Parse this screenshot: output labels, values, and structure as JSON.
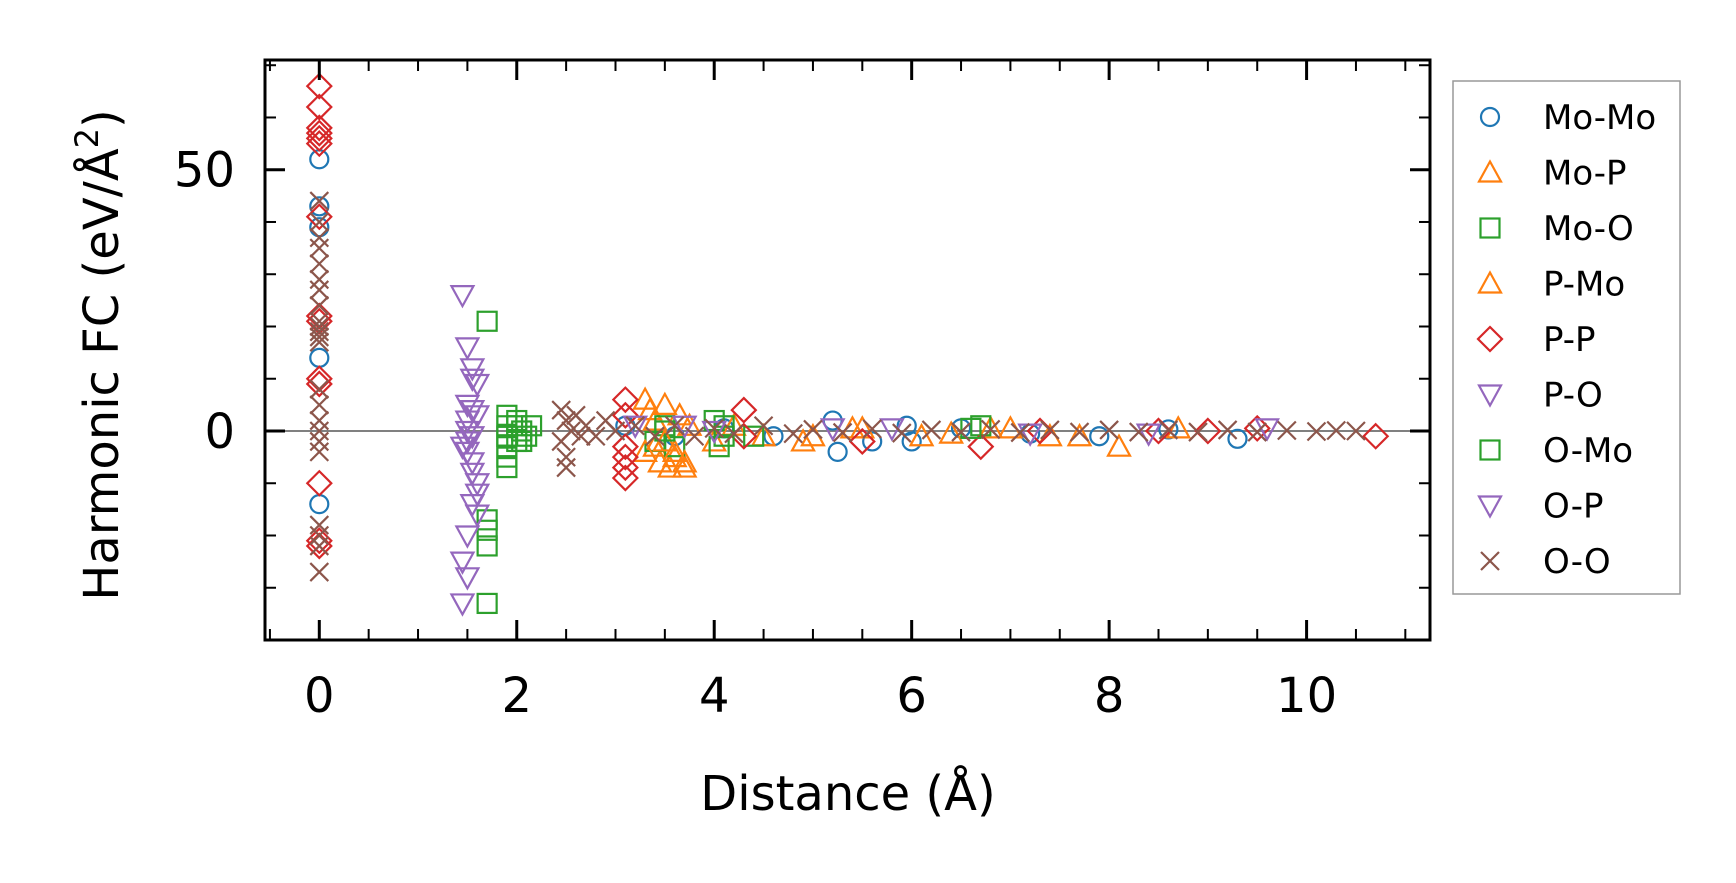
{
  "chart_data": {
    "type": "scatter",
    "title": "",
    "xlabel": "Distance (Å)",
    "ylabel_main": "Harmonic FC (eV/Å",
    "ylabel_sup": "2",
    "ylabel_end": ")",
    "xlim": [
      -0.55,
      11.25
    ],
    "ylim": [
      -40,
      71
    ],
    "x_ticks": [
      0,
      2,
      4,
      6,
      8,
      10
    ],
    "x_tick_labels": [
      "0",
      "2",
      "4",
      "6",
      "8",
      "10"
    ],
    "y_ticks": [
      0,
      50
    ],
    "y_tick_labels": [
      "0",
      "50"
    ],
    "x_minor_step": 0.5,
    "y_minor_step": 10,
    "zero_line": true,
    "grid": false,
    "legend_position": "outside-right",
    "series": [
      {
        "name": "Mo-Mo",
        "marker": "circle",
        "color": "#1f77b4",
        "points": [
          [
            0,
            52
          ],
          [
            0,
            43
          ],
          [
            0,
            39
          ],
          [
            0,
            14
          ],
          [
            0,
            -14
          ],
          [
            3.1,
            1
          ],
          [
            3.6,
            -1
          ],
          [
            4.1,
            0.5
          ],
          [
            4.6,
            -1
          ],
          [
            5.2,
            2
          ],
          [
            5.25,
            -4
          ],
          [
            5.6,
            -2
          ],
          [
            5.95,
            1
          ],
          [
            6.0,
            -2
          ],
          [
            6.5,
            0.5
          ],
          [
            7.2,
            -0.5
          ],
          [
            7.9,
            -1
          ],
          [
            8.6,
            0.3
          ],
          [
            9.3,
            -1.5
          ]
        ]
      },
      {
        "name": "Mo-P",
        "marker": "triangle-up",
        "color": "#ff7f0e",
        "points": [
          [
            3.3,
            6
          ],
          [
            3.35,
            4
          ],
          [
            3.4,
            2
          ],
          [
            3.4,
            -3
          ],
          [
            3.45,
            -6
          ],
          [
            3.5,
            5
          ],
          [
            3.55,
            -7
          ],
          [
            3.6,
            -5
          ],
          [
            3.65,
            3
          ],
          [
            3.7,
            -7
          ],
          [
            3.75,
            1
          ],
          [
            4.0,
            -2
          ],
          [
            4.2,
            1
          ],
          [
            4.5,
            -1
          ],
          [
            4.9,
            -2
          ],
          [
            5.4,
            0.5
          ],
          [
            6.1,
            -1
          ],
          [
            6.8,
            0.5
          ],
          [
            7.4,
            -1
          ],
          [
            8.1,
            -3
          ],
          [
            8.7,
            0.5
          ]
        ]
      },
      {
        "name": "Mo-O",
        "marker": "square",
        "color": "#2ca02c",
        "points": [
          [
            1.7,
            21
          ],
          [
            1.7,
            -17
          ],
          [
            1.7,
            -19
          ],
          [
            1.7,
            -22
          ],
          [
            1.7,
            -33
          ],
          [
            1.9,
            3
          ],
          [
            1.9,
            1
          ],
          [
            1.9,
            -1
          ],
          [
            1.9,
            -3
          ],
          [
            1.9,
            -5
          ],
          [
            1.9,
            -7
          ],
          [
            2.0,
            2
          ],
          [
            2.0,
            -2
          ],
          [
            2.05,
            0
          ],
          [
            2.1,
            -1
          ],
          [
            2.15,
            1
          ],
          [
            3.4,
            -2
          ],
          [
            3.5,
            1
          ],
          [
            3.6,
            -3
          ],
          [
            4.0,
            2
          ],
          [
            4.05,
            -3
          ],
          [
            4.1,
            1
          ],
          [
            4.4,
            -1
          ],
          [
            6.7,
            1
          ]
        ]
      },
      {
        "name": "P-Mo",
        "marker": "triangle-up",
        "color": "#ff7f0e",
        "points": [
          [
            3.3,
            -4
          ],
          [
            3.5,
            -2
          ],
          [
            3.6,
            -4
          ],
          [
            3.7,
            -6
          ],
          [
            5.0,
            -1
          ],
          [
            5.5,
            0.5
          ],
          [
            6.4,
            -0.5
          ],
          [
            7.0,
            0.5
          ],
          [
            7.7,
            -1
          ]
        ]
      },
      {
        "name": "P-P",
        "marker": "diamond",
        "color": "#d62728",
        "points": [
          [
            0,
            66
          ],
          [
            0,
            62
          ],
          [
            0,
            58
          ],
          [
            0,
            57
          ],
          [
            0,
            56
          ],
          [
            0,
            55
          ],
          [
            0,
            41
          ],
          [
            0,
            22
          ],
          [
            0,
            21
          ],
          [
            0,
            10
          ],
          [
            0,
            9
          ],
          [
            0,
            -10
          ],
          [
            0,
            -21
          ],
          [
            0,
            -22
          ],
          [
            3.1,
            6
          ],
          [
            3.1,
            3
          ],
          [
            3.1,
            -3
          ],
          [
            3.1,
            -5
          ],
          [
            3.1,
            -7
          ],
          [
            3.1,
            -9
          ],
          [
            4.3,
            4
          ],
          [
            4.3,
            -1
          ],
          [
            5.5,
            -2
          ],
          [
            6.7,
            -3
          ],
          [
            7.3,
            0
          ],
          [
            8.5,
            0
          ],
          [
            9.0,
            0
          ],
          [
            9.5,
            0.5
          ],
          [
            10.7,
            -1
          ]
        ]
      },
      {
        "name": "P-O",
        "marker": "triangle-down",
        "color": "#9467bd",
        "points": [
          [
            1.45,
            26
          ],
          [
            1.5,
            16
          ],
          [
            1.55,
            12
          ],
          [
            1.55,
            10
          ],
          [
            1.6,
            9
          ],
          [
            1.55,
            4
          ],
          [
            1.5,
            2
          ],
          [
            1.5,
            0
          ],
          [
            1.5,
            -2
          ],
          [
            1.5,
            -4
          ],
          [
            1.55,
            -6
          ],
          [
            1.55,
            -8
          ],
          [
            1.6,
            -10
          ],
          [
            1.6,
            -12
          ],
          [
            1.55,
            -14
          ],
          [
            1.6,
            -16
          ],
          [
            1.5,
            -20
          ],
          [
            1.45,
            -25
          ],
          [
            1.5,
            -28
          ],
          [
            1.45,
            -33
          ],
          [
            3.7,
            1
          ],
          [
            5.2,
            0.5
          ],
          [
            7.2,
            -0.5
          ],
          [
            9.6,
            0.5
          ]
        ]
      },
      {
        "name": "O-Mo",
        "marker": "square",
        "color": "#2ca02c",
        "points": [
          [
            1.9,
            -1
          ],
          [
            2.0,
            1
          ],
          [
            2.05,
            -2
          ],
          [
            3.5,
            0
          ],
          [
            4.1,
            -1
          ],
          [
            6.6,
            0.5
          ]
        ]
      },
      {
        "name": "O-P",
        "marker": "triangle-down",
        "color": "#9467bd",
        "points": [
          [
            1.45,
            -3
          ],
          [
            1.5,
            5
          ],
          [
            1.55,
            -1
          ],
          [
            1.6,
            3
          ],
          [
            3.2,
            1
          ],
          [
            4.0,
            0
          ],
          [
            5.8,
            0.5
          ],
          [
            8.4,
            -0.5
          ]
        ]
      },
      {
        "name": "O-O",
        "marker": "x",
        "color": "#8c564b",
        "points": [
          [
            0,
            44
          ],
          [
            0,
            40
          ],
          [
            0,
            37
          ],
          [
            0,
            35
          ],
          [
            0,
            32
          ],
          [
            0,
            29
          ],
          [
            0,
            27
          ],
          [
            0,
            24
          ],
          [
            0,
            21
          ],
          [
            0,
            20
          ],
          [
            0,
            19
          ],
          [
            0,
            18
          ],
          [
            0,
            17
          ],
          [
            0,
            8
          ],
          [
            0,
            5
          ],
          [
            0,
            2
          ],
          [
            0,
            0
          ],
          [
            0,
            -2
          ],
          [
            0,
            -4
          ],
          [
            0,
            -18
          ],
          [
            0,
            -20
          ],
          [
            0,
            -22
          ],
          [
            0,
            -27
          ],
          [
            2.45,
            4
          ],
          [
            2.5,
            2
          ],
          [
            2.55,
            0
          ],
          [
            2.45,
            -2
          ],
          [
            2.5,
            -5
          ],
          [
            2.5,
            -7
          ],
          [
            2.6,
            3
          ],
          [
            2.65,
            -1
          ],
          [
            2.7,
            1
          ],
          [
            2.8,
            -1
          ],
          [
            2.9,
            2
          ],
          [
            3.0,
            0
          ],
          [
            3.2,
            1
          ],
          [
            3.4,
            -1
          ],
          [
            3.6,
            1
          ],
          [
            3.8,
            -1
          ],
          [
            4.0,
            0.5
          ],
          [
            4.2,
            -0.5
          ],
          [
            4.5,
            1
          ],
          [
            4.8,
            -0.5
          ],
          [
            5.0,
            0.3
          ],
          [
            5.3,
            -0.3
          ],
          [
            5.6,
            0.4
          ],
          [
            5.9,
            -0.4
          ],
          [
            6.2,
            0.2
          ],
          [
            6.5,
            -0.2
          ],
          [
            6.8,
            0.3
          ],
          [
            7.1,
            -0.3
          ],
          [
            7.4,
            0.2
          ],
          [
            7.7,
            -0.2
          ],
          [
            8.0,
            0.2
          ],
          [
            8.3,
            -0.2
          ],
          [
            8.6,
            0.2
          ],
          [
            8.9,
            -0.2
          ],
          [
            9.2,
            0.2
          ],
          [
            9.5,
            -0.2
          ],
          [
            9.8,
            0.1
          ],
          [
            10.1,
            -0.1
          ],
          [
            10.3,
            0.1
          ],
          [
            10.5,
            0
          ]
        ]
      }
    ]
  }
}
